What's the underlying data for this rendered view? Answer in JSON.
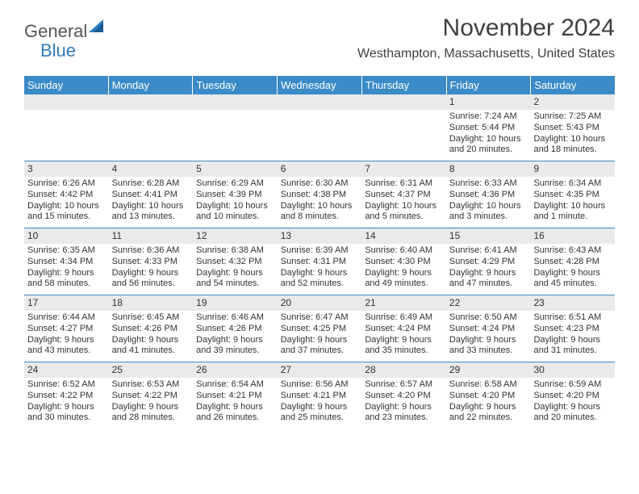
{
  "logo": {
    "word1": "General",
    "word2": "Blue"
  },
  "title": "November 2024",
  "subtitle": "Westhampton, Massachusetts, United States",
  "colors": {
    "header_bg": "#3b8bc8",
    "header_text": "#ffffff",
    "daynum_bg": "#e8eaec",
    "divider": "#3b8bc8",
    "text": "#333333",
    "title": "#404040",
    "logo_gray": "#555555",
    "logo_blue": "#2f7bbf"
  },
  "fonts": {
    "title_size": 30,
    "subtitle_size": 16,
    "dow_size": 13,
    "body_size": 11
  },
  "dow": [
    "Sunday",
    "Monday",
    "Tuesday",
    "Wednesday",
    "Thursday",
    "Friday",
    "Saturday"
  ],
  "weeks": [
    [
      {
        "n": "",
        "sr": "",
        "ss": "",
        "dl": ""
      },
      {
        "n": "",
        "sr": "",
        "ss": "",
        "dl": ""
      },
      {
        "n": "",
        "sr": "",
        "ss": "",
        "dl": ""
      },
      {
        "n": "",
        "sr": "",
        "ss": "",
        "dl": ""
      },
      {
        "n": "",
        "sr": "",
        "ss": "",
        "dl": ""
      },
      {
        "n": "1",
        "sr": "Sunrise: 7:24 AM",
        "ss": "Sunset: 5:44 PM",
        "dl": "Daylight: 10 hours and 20 minutes."
      },
      {
        "n": "2",
        "sr": "Sunrise: 7:25 AM",
        "ss": "Sunset: 5:43 PM",
        "dl": "Daylight: 10 hours and 18 minutes."
      }
    ],
    [
      {
        "n": "3",
        "sr": "Sunrise: 6:26 AM",
        "ss": "Sunset: 4:42 PM",
        "dl": "Daylight: 10 hours and 15 minutes."
      },
      {
        "n": "4",
        "sr": "Sunrise: 6:28 AM",
        "ss": "Sunset: 4:41 PM",
        "dl": "Daylight: 10 hours and 13 minutes."
      },
      {
        "n": "5",
        "sr": "Sunrise: 6:29 AM",
        "ss": "Sunset: 4:39 PM",
        "dl": "Daylight: 10 hours and 10 minutes."
      },
      {
        "n": "6",
        "sr": "Sunrise: 6:30 AM",
        "ss": "Sunset: 4:38 PM",
        "dl": "Daylight: 10 hours and 8 minutes."
      },
      {
        "n": "7",
        "sr": "Sunrise: 6:31 AM",
        "ss": "Sunset: 4:37 PM",
        "dl": "Daylight: 10 hours and 5 minutes."
      },
      {
        "n": "8",
        "sr": "Sunrise: 6:33 AM",
        "ss": "Sunset: 4:36 PM",
        "dl": "Daylight: 10 hours and 3 minutes."
      },
      {
        "n": "9",
        "sr": "Sunrise: 6:34 AM",
        "ss": "Sunset: 4:35 PM",
        "dl": "Daylight: 10 hours and 1 minute."
      }
    ],
    [
      {
        "n": "10",
        "sr": "Sunrise: 6:35 AM",
        "ss": "Sunset: 4:34 PM",
        "dl": "Daylight: 9 hours and 58 minutes."
      },
      {
        "n": "11",
        "sr": "Sunrise: 6:36 AM",
        "ss": "Sunset: 4:33 PM",
        "dl": "Daylight: 9 hours and 56 minutes."
      },
      {
        "n": "12",
        "sr": "Sunrise: 6:38 AM",
        "ss": "Sunset: 4:32 PM",
        "dl": "Daylight: 9 hours and 54 minutes."
      },
      {
        "n": "13",
        "sr": "Sunrise: 6:39 AM",
        "ss": "Sunset: 4:31 PM",
        "dl": "Daylight: 9 hours and 52 minutes."
      },
      {
        "n": "14",
        "sr": "Sunrise: 6:40 AM",
        "ss": "Sunset: 4:30 PM",
        "dl": "Daylight: 9 hours and 49 minutes."
      },
      {
        "n": "15",
        "sr": "Sunrise: 6:41 AM",
        "ss": "Sunset: 4:29 PM",
        "dl": "Daylight: 9 hours and 47 minutes."
      },
      {
        "n": "16",
        "sr": "Sunrise: 6:43 AM",
        "ss": "Sunset: 4:28 PM",
        "dl": "Daylight: 9 hours and 45 minutes."
      }
    ],
    [
      {
        "n": "17",
        "sr": "Sunrise: 6:44 AM",
        "ss": "Sunset: 4:27 PM",
        "dl": "Daylight: 9 hours and 43 minutes."
      },
      {
        "n": "18",
        "sr": "Sunrise: 6:45 AM",
        "ss": "Sunset: 4:26 PM",
        "dl": "Daylight: 9 hours and 41 minutes."
      },
      {
        "n": "19",
        "sr": "Sunrise: 6:46 AM",
        "ss": "Sunset: 4:26 PM",
        "dl": "Daylight: 9 hours and 39 minutes."
      },
      {
        "n": "20",
        "sr": "Sunrise: 6:47 AM",
        "ss": "Sunset: 4:25 PM",
        "dl": "Daylight: 9 hours and 37 minutes."
      },
      {
        "n": "21",
        "sr": "Sunrise: 6:49 AM",
        "ss": "Sunset: 4:24 PM",
        "dl": "Daylight: 9 hours and 35 minutes."
      },
      {
        "n": "22",
        "sr": "Sunrise: 6:50 AM",
        "ss": "Sunset: 4:24 PM",
        "dl": "Daylight: 9 hours and 33 minutes."
      },
      {
        "n": "23",
        "sr": "Sunrise: 6:51 AM",
        "ss": "Sunset: 4:23 PM",
        "dl": "Daylight: 9 hours and 31 minutes."
      }
    ],
    [
      {
        "n": "24",
        "sr": "Sunrise: 6:52 AM",
        "ss": "Sunset: 4:22 PM",
        "dl": "Daylight: 9 hours and 30 minutes."
      },
      {
        "n": "25",
        "sr": "Sunrise: 6:53 AM",
        "ss": "Sunset: 4:22 PM",
        "dl": "Daylight: 9 hours and 28 minutes."
      },
      {
        "n": "26",
        "sr": "Sunrise: 6:54 AM",
        "ss": "Sunset: 4:21 PM",
        "dl": "Daylight: 9 hours and 26 minutes."
      },
      {
        "n": "27",
        "sr": "Sunrise: 6:56 AM",
        "ss": "Sunset: 4:21 PM",
        "dl": "Daylight: 9 hours and 25 minutes."
      },
      {
        "n": "28",
        "sr": "Sunrise: 6:57 AM",
        "ss": "Sunset: 4:20 PM",
        "dl": "Daylight: 9 hours and 23 minutes."
      },
      {
        "n": "29",
        "sr": "Sunrise: 6:58 AM",
        "ss": "Sunset: 4:20 PM",
        "dl": "Daylight: 9 hours and 22 minutes."
      },
      {
        "n": "30",
        "sr": "Sunrise: 6:59 AM",
        "ss": "Sunset: 4:20 PM",
        "dl": "Daylight: 9 hours and 20 minutes."
      }
    ]
  ]
}
